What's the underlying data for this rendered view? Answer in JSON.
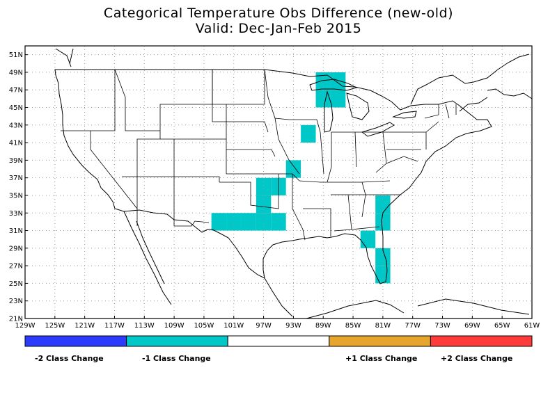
{
  "title": "Categorical Temperature Obs Difference (new-old)",
  "subtitle": "Valid: Dec-Jan-Feb 2015",
  "colors": {
    "minus2": "#2c3cff",
    "minus1": "#00c8c8",
    "zero": "#ffffff",
    "plus1": "#e6a62c",
    "plus2": "#ff3c3c",
    "grid": "#9a9a9a",
    "border": "#000000"
  },
  "legend": [
    {
      "label": "-2 Class Change",
      "color": "#2c3cff"
    },
    {
      "label": "-1 Class Change",
      "color": "#00c8c8"
    },
    {
      "label": "",
      "color": "#ffffff"
    },
    {
      "label": "+1 Class Change",
      "color": "#e6a62c"
    },
    {
      "label": "+2 Class Change",
      "color": "#ff3c3c"
    }
  ],
  "chart_data": {
    "type": "heatmap",
    "xlim": [
      -129,
      -61
    ],
    "ylim": [
      21,
      52
    ],
    "x_ticks": [
      "129W",
      "125W",
      "121W",
      "117W",
      "113W",
      "109W",
      "105W",
      "101W",
      "97W",
      "93W",
      "89W",
      "85W",
      "81W",
      "77W",
      "73W",
      "69W",
      "65W",
      "61W"
    ],
    "y_ticks": [
      "21N",
      "23N",
      "25N",
      "27N",
      "29N",
      "31N",
      "33N",
      "35N",
      "37N",
      "39N",
      "41N",
      "43N",
      "45N",
      "47N",
      "49N",
      "51N"
    ],
    "grid": true,
    "cell_size_deg": 2,
    "cells": [
      {
        "lon": -89,
        "lat": 48,
        "value": -1
      },
      {
        "lon": -87,
        "lat": 48,
        "value": -1
      },
      {
        "lon": -89,
        "lat": 46,
        "value": -1
      },
      {
        "lon": -87,
        "lat": 46,
        "value": -1
      },
      {
        "lon": -91,
        "lat": 42,
        "value": -1
      },
      {
        "lon": -93,
        "lat": 38,
        "value": -1
      },
      {
        "lon": -97,
        "lat": 36,
        "value": -1
      },
      {
        "lon": -95,
        "lat": 36,
        "value": -1
      },
      {
        "lon": -97,
        "lat": 34,
        "value": -1
      },
      {
        "lon": -103,
        "lat": 32,
        "value": -1
      },
      {
        "lon": -101,
        "lat": 32,
        "value": -1
      },
      {
        "lon": -99,
        "lat": 32,
        "value": -1
      },
      {
        "lon": -97,
        "lat": 32,
        "value": -1
      },
      {
        "lon": -95,
        "lat": 32,
        "value": -1
      },
      {
        "lon": -81,
        "lat": 34,
        "value": -1
      },
      {
        "lon": -81,
        "lat": 32,
        "value": -1
      },
      {
        "lon": -83,
        "lat": 30,
        "value": -1
      },
      {
        "lon": -81,
        "lat": 28,
        "value": -1
      },
      {
        "lon": -81,
        "lat": 26,
        "value": -1
      }
    ]
  }
}
